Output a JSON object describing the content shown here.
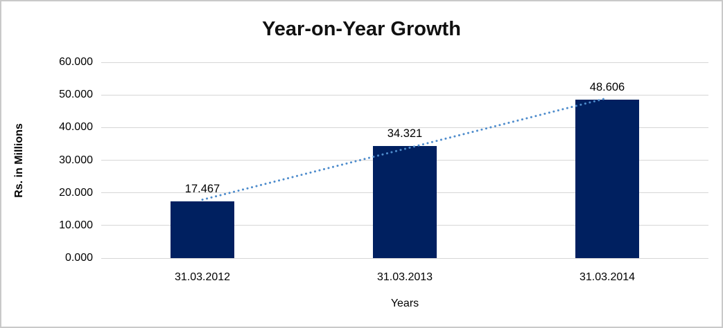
{
  "colors": {
    "bar": "#002060",
    "trend": "#4e8ccc",
    "grid": "#d6d6d6",
    "border": "#c9c9c9",
    "text": "#000000"
  },
  "chart_data": {
    "type": "bar",
    "title": "Year-on-Year Growth",
    "xlabel": "Years",
    "ylabel": "Rs. in Millions",
    "categories": [
      "31.03.2012",
      "31.03.2013",
      "31.03.2014"
    ],
    "values": [
      17.467,
      34.321,
      48.606
    ],
    "data_labels": [
      "17.467",
      "34.321",
      "48.606"
    ],
    "ylim": [
      0,
      60
    ],
    "ytick_step": 10,
    "ytick_labels": [
      "0.000",
      "10.000",
      "20.000",
      "30.000",
      "40.000",
      "50.000",
      "60.000"
    ],
    "grid": true,
    "legend": "none",
    "bar_color": "#002060",
    "gridline_color": "#d6d6d6",
    "trendline": {
      "type": "linear",
      "style": "dotted",
      "color": "#4e8ccc"
    }
  }
}
